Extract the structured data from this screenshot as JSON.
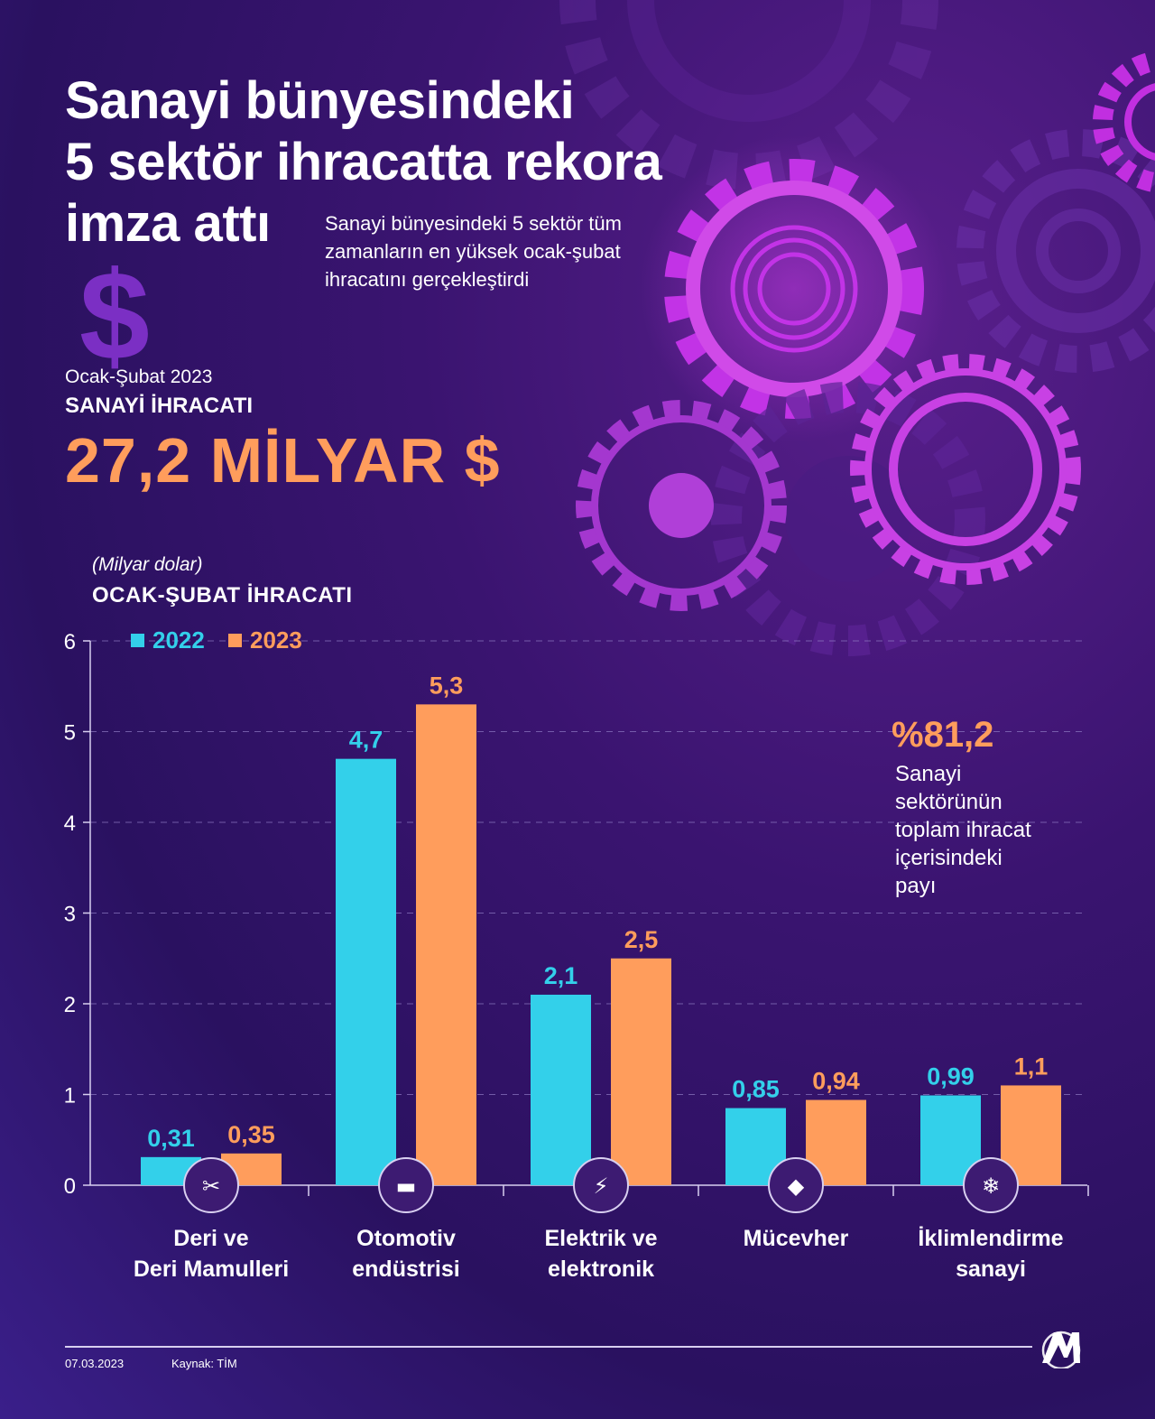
{
  "header": {
    "title_lines": [
      "Sanayi bünyesindeki",
      "5 sektör ihracatta rekora",
      "imza attı"
    ],
    "subtitle_lines": [
      "Sanayi bünyesindeki 5 sektör tüm",
      "zamanların en yüksek ocak-şubat",
      "ihracatını gerçekleştirdi"
    ],
    "dollar_symbol": "$"
  },
  "summary": {
    "period": "Ocak-Şubat 2023",
    "label": "SANAYİ İHRACATI",
    "value": "27,2 MİLYAR $"
  },
  "chart_data": {
    "type": "bar",
    "title": "OCAK-ŞUBAT İHRACATI",
    "ylabel": "(Milyar dolar)",
    "categories": [
      [
        "Deri ve",
        "Deri Mamulleri"
      ],
      [
        "Otomotiv",
        "endüstrisi"
      ],
      [
        "Elektrik ve",
        "elektronik"
      ],
      [
        "Mücevher"
      ],
      [
        "İklimlendirme",
        "sanayi"
      ]
    ],
    "category_icons": [
      "leather-goods-icon",
      "cars-icon",
      "lightning-icon",
      "diamond-icon",
      "air-conditioner-icon"
    ],
    "series": [
      {
        "name": "2022",
        "color": "#33d0ea",
        "values": [
          0.31,
          4.7,
          2.1,
          0.85,
          0.99
        ],
        "labels": [
          "0,31",
          "4,7",
          "2,1",
          "0,85",
          "0,99"
        ]
      },
      {
        "name": "2023",
        "color": "#ff9d5c",
        "values": [
          0.35,
          5.3,
          2.5,
          0.94,
          1.1
        ],
        "labels": [
          "0,35",
          "5,3",
          "2,5",
          "0,94",
          "1,1"
        ]
      }
    ],
    "yticks": [
      "0",
      "1",
      "2",
      "3",
      "4",
      "5",
      "6"
    ],
    "ylim": [
      0,
      6
    ],
    "grid": true,
    "legend": "top-left"
  },
  "share": {
    "value": "%81,2",
    "text_lines": [
      "Sanayi",
      "sektörünün",
      "toplam ihracat",
      "içerisindeki",
      "payı"
    ]
  },
  "footer": {
    "date": "07.03.2023",
    "source": "Kaynak: TİM",
    "logo": "aa-logo"
  }
}
